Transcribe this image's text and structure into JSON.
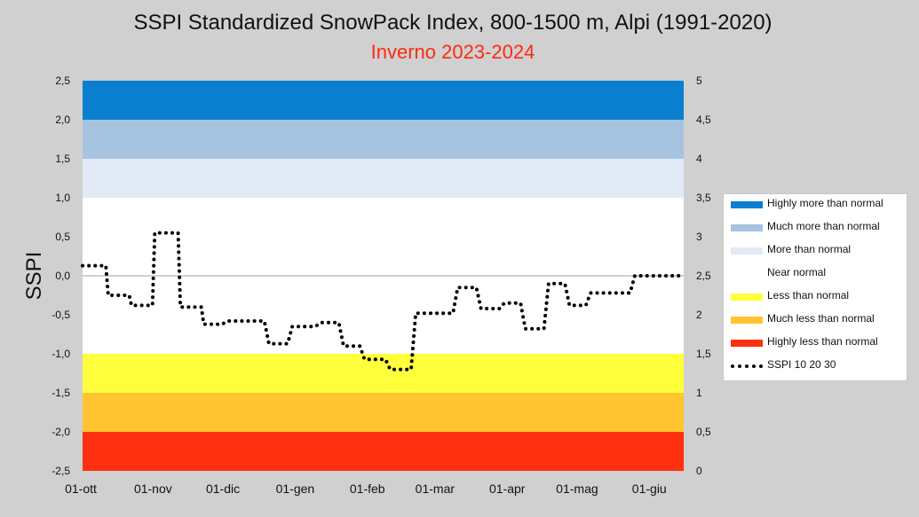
{
  "title": "SSPI Standardized SnowPack Index, 800-1500 m, Alpi (1991-2020)",
  "subtitle": "Inverno 2023-2024",
  "chart_data": {
    "type": "line",
    "title": "SSPI Standardized SnowPack Index, 800-1500 m, Alpi (1991-2020)",
    "subtitle": "Inverno 2023-2024",
    "ylabel": "SSPI",
    "ylim": [
      -2.5,
      2.5
    ],
    "y_ticks": [
      "2,5",
      "2,0",
      "1,5",
      "1,0",
      "0,5",
      "0,0",
      "-0,5",
      "-1,0",
      "-1,5",
      "-2,0",
      "-2,5"
    ],
    "y2lim": [
      0,
      5
    ],
    "y2_ticks": [
      "5",
      "4,5",
      "4",
      "3,5",
      "3",
      "2,5",
      "2",
      "1,5",
      "1",
      "0,5",
      "0"
    ],
    "xlim": [
      0,
      258
    ],
    "x_ticks": [
      {
        "label": "01-ott",
        "day": 0
      },
      {
        "label": "01-nov",
        "day": 31
      },
      {
        "label": "01-dic",
        "day": 61
      },
      {
        "label": "01-gen",
        "day": 92
      },
      {
        "label": "01-feb",
        "day": 123
      },
      {
        "label": "01-mar",
        "day": 152
      },
      {
        "label": "01-apr",
        "day": 183
      },
      {
        "label": "01-mag",
        "day": 213
      },
      {
        "label": "01-giu",
        "day": 244
      }
    ],
    "bands": [
      {
        "label": "Highly more than normal",
        "from": 2.0,
        "to": 2.5,
        "color": "#0a7fd0"
      },
      {
        "label": "Much more than normal",
        "from": 1.5,
        "to": 2.0,
        "color": "#a6c3e0"
      },
      {
        "label": "More than normal",
        "from": 1.0,
        "to": 1.5,
        "color": "#e2ebf5"
      },
      {
        "label": "Near normal",
        "from": -1.0,
        "to": 1.0,
        "color": "#ffffff"
      },
      {
        "label": "Less than normal",
        "from": -1.5,
        "to": -1.0,
        "color": "#ffff3c"
      },
      {
        "label": "Much less than normal",
        "from": -2.0,
        "to": -1.5,
        "color": "#ffc430"
      },
      {
        "label": "Highly less than normal",
        "from": -2.5,
        "to": -2.0,
        "color": "#ff3010"
      }
    ],
    "series": [
      {
        "name": "SSPI 10 20 30",
        "style": "dotted",
        "color": "#000000",
        "points": [
          [
            0,
            0.13
          ],
          [
            10,
            0.13
          ],
          [
            11,
            -0.25
          ],
          [
            20,
            -0.25
          ],
          [
            21,
            -0.38
          ],
          [
            30,
            -0.38
          ],
          [
            31,
            0.55
          ],
          [
            41,
            0.55
          ],
          [
            42,
            -0.4
          ],
          [
            51,
            -0.4
          ],
          [
            52,
            -0.62
          ],
          [
            60,
            -0.62
          ],
          [
            62,
            -0.58
          ],
          [
            78,
            -0.58
          ],
          [
            80,
            -0.87
          ],
          [
            88,
            -0.87
          ],
          [
            90,
            -0.65
          ],
          [
            100,
            -0.65
          ],
          [
            102,
            -0.6
          ],
          [
            110,
            -0.6
          ],
          [
            112,
            -0.9
          ],
          [
            119,
            -0.9
          ],
          [
            121,
            -1.07
          ],
          [
            130,
            -1.07
          ],
          [
            132,
            -1.2
          ],
          [
            141,
            -1.2
          ],
          [
            143,
            -0.48
          ],
          [
            159,
            -0.48
          ],
          [
            161,
            -0.15
          ],
          [
            169,
            -0.15
          ],
          [
            171,
            -0.42
          ],
          [
            179,
            -0.42
          ],
          [
            181,
            -0.35
          ],
          [
            188,
            -0.35
          ],
          [
            190,
            -0.68
          ],
          [
            198,
            -0.68
          ],
          [
            200,
            -0.1
          ],
          [
            207,
            -0.1
          ],
          [
            209,
            -0.38
          ],
          [
            216,
            -0.38
          ],
          [
            218,
            -0.22
          ],
          [
            235,
            -0.22
          ],
          [
            237,
            0.0
          ],
          [
            257,
            0.0
          ]
        ]
      }
    ]
  },
  "legend": [
    {
      "label": "Highly more than normal",
      "color": "#0a7fd0"
    },
    {
      "label": "Much more than normal",
      "color": "#a6c3e0"
    },
    {
      "label": "More than normal",
      "color": "#e2ebf5"
    },
    {
      "label": "Near normal",
      "color": "#ffffff"
    },
    {
      "label": "Less than normal",
      "color": "#ffff3c"
    },
    {
      "label": "Much less than normal",
      "color": "#ffc430"
    },
    {
      "label": "Highly less than normal",
      "color": "#ff3010"
    },
    {
      "label": "SSPI 10 20 30",
      "color": "#000000"
    }
  ]
}
